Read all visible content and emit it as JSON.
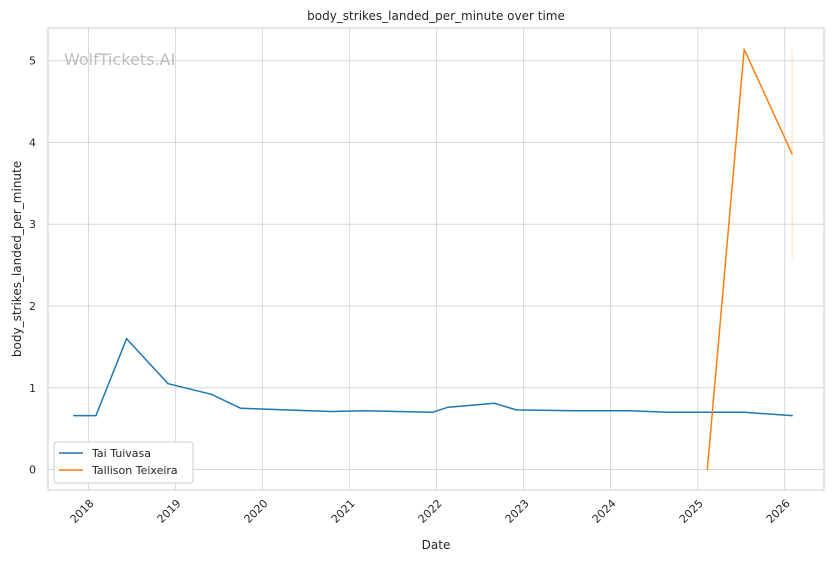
{
  "chart_data": {
    "type": "line",
    "title": "body_strikes_landed_per_minute over time",
    "xlabel": "Date",
    "ylabel": "body_strikes_landed_per_minute",
    "watermark": "WolfTickets.AI",
    "x_ticks": [
      "2018",
      "2019",
      "2020",
      "2021",
      "2022",
      "2023",
      "2024",
      "2025",
      "2026"
    ],
    "y_ticks": [
      "0",
      "1",
      "2",
      "3",
      "4",
      "5"
    ],
    "xlim": [
      "2017-07-15",
      "2026-06-15"
    ],
    "ylim": [
      -0.25,
      5.4
    ],
    "grid": true,
    "legend_position": "lower-left",
    "series": [
      {
        "name": "Tai Tuivasa",
        "color": "#1f77b4",
        "points": [
          {
            "x": "2017-11-01",
            "y": 0.66
          },
          {
            "x": "2018-02-01",
            "y": 0.66
          },
          {
            "x": "2018-06-10",
            "y": 1.6
          },
          {
            "x": "2018-12-01",
            "y": 1.05
          },
          {
            "x": "2019-06-01",
            "y": 0.92
          },
          {
            "x": "2019-10-01",
            "y": 0.75
          },
          {
            "x": "2020-10-15",
            "y": 0.71
          },
          {
            "x": "2021-03-01",
            "y": 0.72
          },
          {
            "x": "2021-12-15",
            "y": 0.7
          },
          {
            "x": "2022-02-15",
            "y": 0.76
          },
          {
            "x": "2022-09-01",
            "y": 0.81
          },
          {
            "x": "2022-12-01",
            "y": 0.73
          },
          {
            "x": "2023-08-01",
            "y": 0.72
          },
          {
            "x": "2024-03-15",
            "y": 0.72
          },
          {
            "x": "2024-09-01",
            "y": 0.7
          },
          {
            "x": "2025-07-15",
            "y": 0.7
          },
          {
            "x": "2026-02-01",
            "y": 0.66
          }
        ]
      },
      {
        "name": "Tallison Teixeira",
        "color": "#ff7f0e",
        "points": [
          {
            "x": "2025-02-10",
            "y": 0.0
          },
          {
            "x": "2025-07-15",
            "y": 5.14
          },
          {
            "x": "2026-02-01",
            "y": 3.86
          }
        ],
        "error_bar": {
          "x": "2026-02-01",
          "low": 2.57,
          "high": 5.14
        }
      }
    ]
  }
}
